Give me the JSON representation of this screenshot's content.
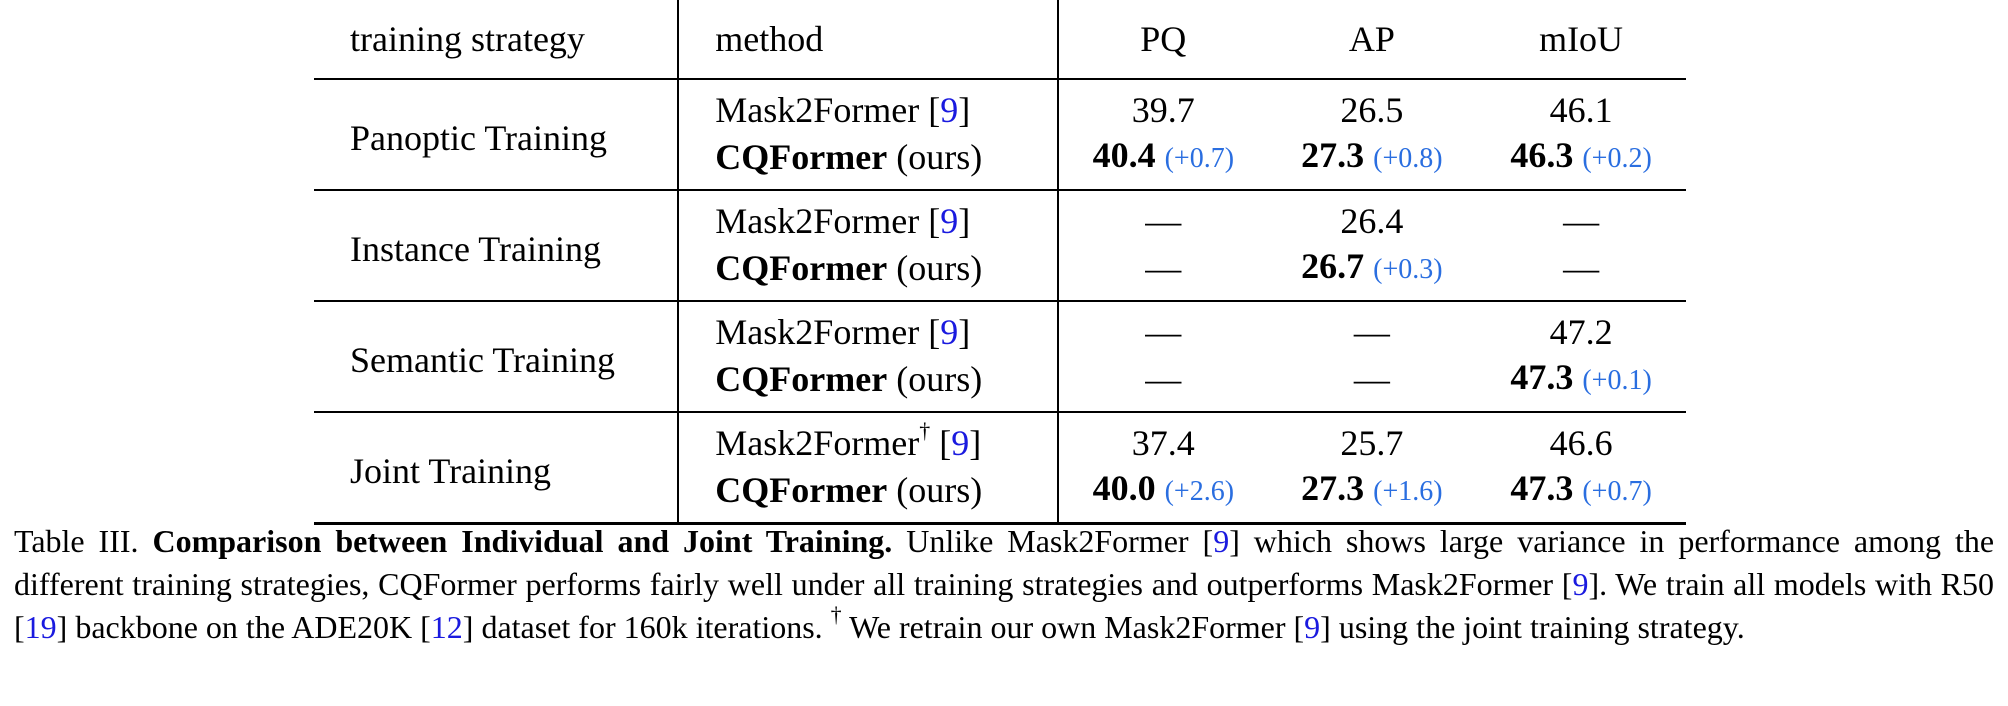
{
  "headers": {
    "strategy": "training strategy",
    "method": "method",
    "pq": "PQ",
    "ap": "AP",
    "miou": "mIoU"
  },
  "rows": [
    {
      "strategy": "Panoptic Training",
      "baseline": {
        "name": "Mask2Former",
        "ref": "9",
        "pq": "39.7",
        "ap": "26.5",
        "miou": "46.1"
      },
      "ours": {
        "name": "CQFormer",
        "tag": "(ours)",
        "pq": "40.4",
        "pq_delta": "(+0.7)",
        "ap": "27.3",
        "ap_delta": "(+0.8)",
        "miou": "46.3",
        "miou_delta": "(+0.2)"
      }
    },
    {
      "strategy": "Instance Training",
      "baseline": {
        "name": "Mask2Former",
        "ref": "9",
        "pq": "—",
        "ap": "26.4",
        "miou": "—"
      },
      "ours": {
        "name": "CQFormer",
        "tag": "(ours)",
        "pq": "—",
        "pq_delta": "",
        "ap": "26.7",
        "ap_delta": "(+0.3)",
        "miou": "—",
        "miou_delta": ""
      }
    },
    {
      "strategy": "Semantic Training",
      "baseline": {
        "name": "Mask2Former",
        "ref": "9",
        "pq": "—",
        "ap": "—",
        "miou": "47.2"
      },
      "ours": {
        "name": "CQFormer",
        "tag": "(ours)",
        "pq": "—",
        "pq_delta": "",
        "ap": "—",
        "ap_delta": "",
        "miou": "47.3",
        "miou_delta": "(+0.1)"
      }
    },
    {
      "strategy": "Joint Training",
      "baseline": {
        "name": "Mask2Former",
        "dagger": "†",
        "ref": "9",
        "pq": "37.4",
        "ap": "25.7",
        "miou": "46.6"
      },
      "ours": {
        "name": "CQFormer",
        "tag": "(ours)",
        "pq": "40.0",
        "pq_delta": "(+2.6)",
        "ap": "27.3",
        "ap_delta": "(+1.6)",
        "miou": "47.3",
        "miou_delta": "(+0.7)"
      }
    }
  ],
  "caption": {
    "label": "Table III.",
    "title": "Comparison between Individual and Joint Training.",
    "text1": "Unlike Mask2Former [",
    "ref1": "9",
    "text2": "] which shows large variance in performance among the different training strategies, CQFormer performs fairly well under all training strategies and outperforms Mask2Former [",
    "ref2": "9",
    "text3": "]. We train all models with R50 [",
    "ref3": "19",
    "text4": "] backbone on the ADE20K [",
    "ref4": "12",
    "text5": "] dataset for 160k iterations.",
    "dagger": "†",
    "text6": "We retrain our own Mask2Former [",
    "ref5": "9",
    "text7": "] using the joint training strategy."
  },
  "colors": {
    "delta": "#2a6ee0",
    "ref": "#1a1adf"
  }
}
